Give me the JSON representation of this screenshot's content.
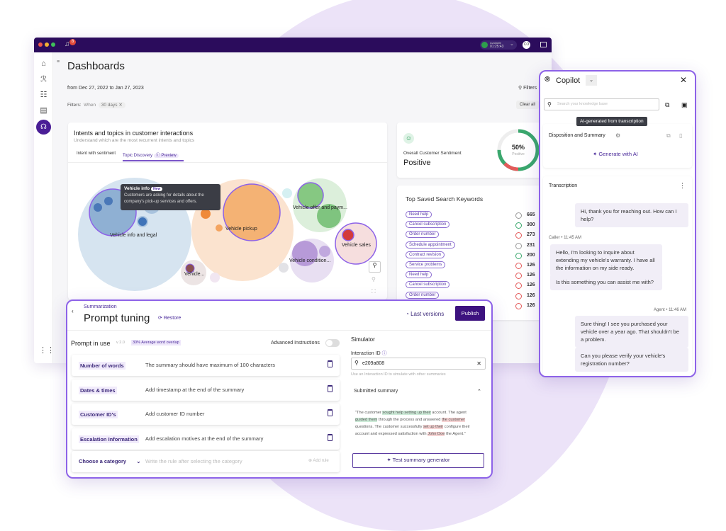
{
  "window": {
    "notification_count": "8",
    "status": {
      "label": "Available",
      "timer": "01:25:43"
    },
    "avatar": "CO"
  },
  "dashboard": {
    "title": "Dashboards",
    "date_range": "from Dec 27, 2022 to Jan 27, 2023",
    "filter_btn": "Filters",
    "filters_label": "Filters:",
    "when_label": "When",
    "when_chip": "30 days",
    "clear_all": "Clear all"
  },
  "intents": {
    "title": "Intents and topics in customer interactions",
    "subtitle": "Understand which are the most recurrent intents and topics",
    "tabs": [
      {
        "label": "Intent with sentiment"
      },
      {
        "label": "Topic Discovery",
        "active": true
      }
    ],
    "preview": "Preview",
    "tooltip": {
      "title": "Vehicle info",
      "badge": "New",
      "text": "Customers are asking for details about the company's pick-up services and offers."
    },
    "bubbles": [
      "Vehicle info and legal",
      "Vehicle pickup",
      "Vehicle offer and paym...",
      "Vehicle sales",
      "Vehicle condition...",
      "Vehicle..."
    ],
    "colors": {
      "blue": "#8fb3d6",
      "orange": "#f2a765",
      "green": "#7fc47f",
      "red": "#d33b3b",
      "purple": "#b79ad8",
      "accent": "#8d62e8"
    }
  },
  "sentiment": {
    "label": "Overall Customer Sentiment",
    "value": "Positive",
    "percent": "50%",
    "percent_label": "Positive",
    "fraction": 0.5
  },
  "keywords": {
    "title": "Top Saved Search Keywords",
    "items": [
      {
        "label": "Need help",
        "sentiment": "neutral",
        "count": "665"
      },
      {
        "label": "Cancel subscription",
        "sentiment": "positive",
        "count": "300"
      },
      {
        "label": "Order number",
        "sentiment": "negative",
        "count": "273"
      },
      {
        "label": "Schedule appointment",
        "sentiment": "neutral",
        "count": "231"
      },
      {
        "label": "Contract revision",
        "sentiment": "positive",
        "count": "200"
      },
      {
        "label": "Service problems",
        "sentiment": "negative",
        "count": "126"
      },
      {
        "label": "Need help",
        "sentiment": "negative",
        "count": "126"
      },
      {
        "label": "Cancel subscription",
        "sentiment": "negative",
        "count": "126"
      },
      {
        "label": "Order number",
        "sentiment": "negative",
        "count": "126"
      },
      {
        "label": "",
        "sentiment": "negative",
        "count": "126"
      }
    ]
  },
  "copilot": {
    "title": "Copilot",
    "search_placeholder": "Search your knowledge base",
    "tooltip": "AI-generated from transcription",
    "disposition": "Disposition and Summary",
    "generate": "Generate with AI",
    "transcription": "Transcription",
    "messages": [
      {
        "meta": "",
        "text": "Hi, thank you for reaching out. How can I help?"
      },
      {
        "meta": "Caller • 11:45 AM",
        "text": "Hello, I'm looking to inquire about extending my vehicle's warranty. I have all the information on my side ready."
      },
      {
        "meta": "",
        "text": "Is this something you can assist me with?"
      },
      {
        "meta": "Agent • 11:46 AM",
        "text": "Sure thing! I see you purchased your vehicle over a year ago. That shouldn't be a problem."
      },
      {
        "meta": "",
        "text": "Can you please verify your vehicle's registration number?"
      }
    ]
  },
  "prompt": {
    "breadcrumb": "Summarization",
    "title": "Prompt tuning",
    "restore": "Restore",
    "last_versions": "Last versions",
    "publish": "Publish",
    "in_use": "Prompt in use",
    "version": "v 2.0",
    "overlap": "30% Average word overlap",
    "advanced": "Advanced Instructions",
    "advanced_on": false,
    "rules": [
      {
        "category": "Number of words",
        "text": "The summary should have maximum of 100 characters"
      },
      {
        "category": "Dates & times",
        "text": "Add timestamp at the end of the summary"
      },
      {
        "category": "Customer ID's",
        "text": "Add customer ID number"
      },
      {
        "category": "Escalation Information",
        "text": "Add escalation motives at the end of the summary"
      }
    ],
    "choose": "Choose a category",
    "rule_placeholder": "Write the rule after selecting the category",
    "add_rule": "Add rule"
  },
  "simulator": {
    "title": "Simulator",
    "id_label": "Interaction ID",
    "id_value": "e209a808",
    "hint": "Use an Interaction ID to simulate with other summaries",
    "submitted": "Submitted summary",
    "summary": [
      {
        "t": "\"The customer "
      },
      {
        "t": "sought help setting up their",
        "h": "g"
      },
      {
        "t": " account. The agent "
      },
      {
        "t": "guided them",
        "h": "g"
      },
      {
        "t": " through the process and answered "
      },
      {
        "t": "the customer",
        "h": "r"
      },
      {
        "t": " questions. The customer successfully "
      },
      {
        "t": "set up their",
        "h": "r"
      },
      {
        "t": " configure their account and expressed satisfaction with "
      },
      {
        "t": "John Doe",
        "h": "r"
      },
      {
        "t": " the Agent.\""
      }
    ],
    "test_btn": "Test summary generator"
  }
}
